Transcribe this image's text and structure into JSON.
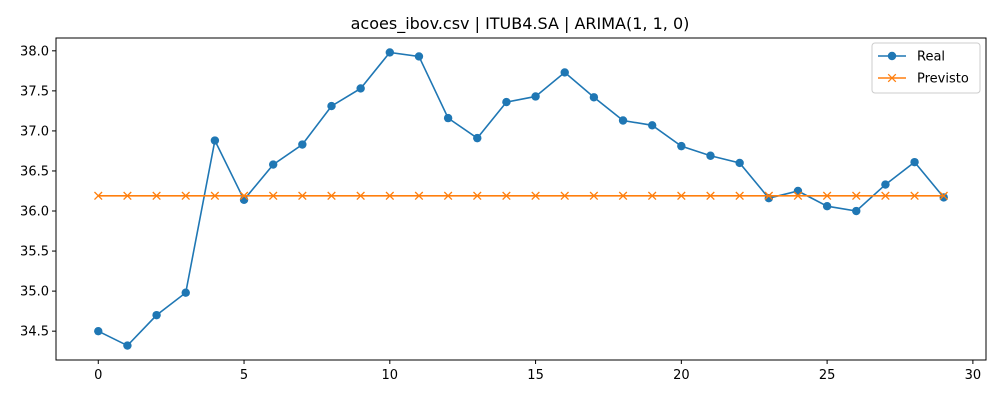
{
  "chart_data": {
    "type": "line",
    "title": "acoes_ibov.csv | ITUB4.SA | ARIMA(1, 1, 0)",
    "xlabel": "",
    "ylabel": "",
    "xlim": [
      -1.45,
      30.45
    ],
    "ylim": [
      34.14,
      38.16
    ],
    "x_ticks": [
      0,
      5,
      10,
      15,
      20,
      25,
      30
    ],
    "y_ticks": [
      34.5,
      35.0,
      35.5,
      36.0,
      36.5,
      37.0,
      37.5,
      38.0
    ],
    "x_tick_labels": [
      "0",
      "5",
      "10",
      "15",
      "20",
      "25",
      "30"
    ],
    "y_tick_labels": [
      "34.5",
      "35.0",
      "35.5",
      "36.0",
      "36.5",
      "37.0",
      "37.5",
      "38.0"
    ],
    "grid": false,
    "legend_position": "top-right",
    "x": [
      0,
      1,
      2,
      3,
      4,
      5,
      6,
      7,
      8,
      9,
      10,
      11,
      12,
      13,
      14,
      15,
      16,
      17,
      18,
      19,
      20,
      21,
      22,
      23,
      24,
      25,
      26,
      27,
      28,
      29
    ],
    "series": [
      {
        "name": "Real",
        "color": "#1f77b4",
        "marker": "circle",
        "values": [
          34.5,
          34.32,
          34.7,
          34.98,
          36.88,
          36.14,
          36.58,
          36.83,
          37.31,
          37.53,
          37.98,
          37.93,
          37.16,
          36.91,
          37.36,
          37.43,
          37.73,
          37.42,
          37.13,
          37.07,
          36.81,
          36.69,
          36.6,
          36.16,
          36.25,
          36.06,
          36.0,
          36.33,
          36.61,
          36.17
        ]
      },
      {
        "name": "Previsto",
        "color": "#ff7f0e",
        "marker": "x",
        "values": [
          36.19,
          36.19,
          36.19,
          36.19,
          36.19,
          36.19,
          36.19,
          36.19,
          36.19,
          36.19,
          36.19,
          36.19,
          36.19,
          36.19,
          36.19,
          36.19,
          36.19,
          36.19,
          36.19,
          36.19,
          36.19,
          36.19,
          36.19,
          36.19,
          36.19,
          36.19,
          36.19,
          36.19,
          36.19,
          36.19
        ]
      }
    ]
  }
}
